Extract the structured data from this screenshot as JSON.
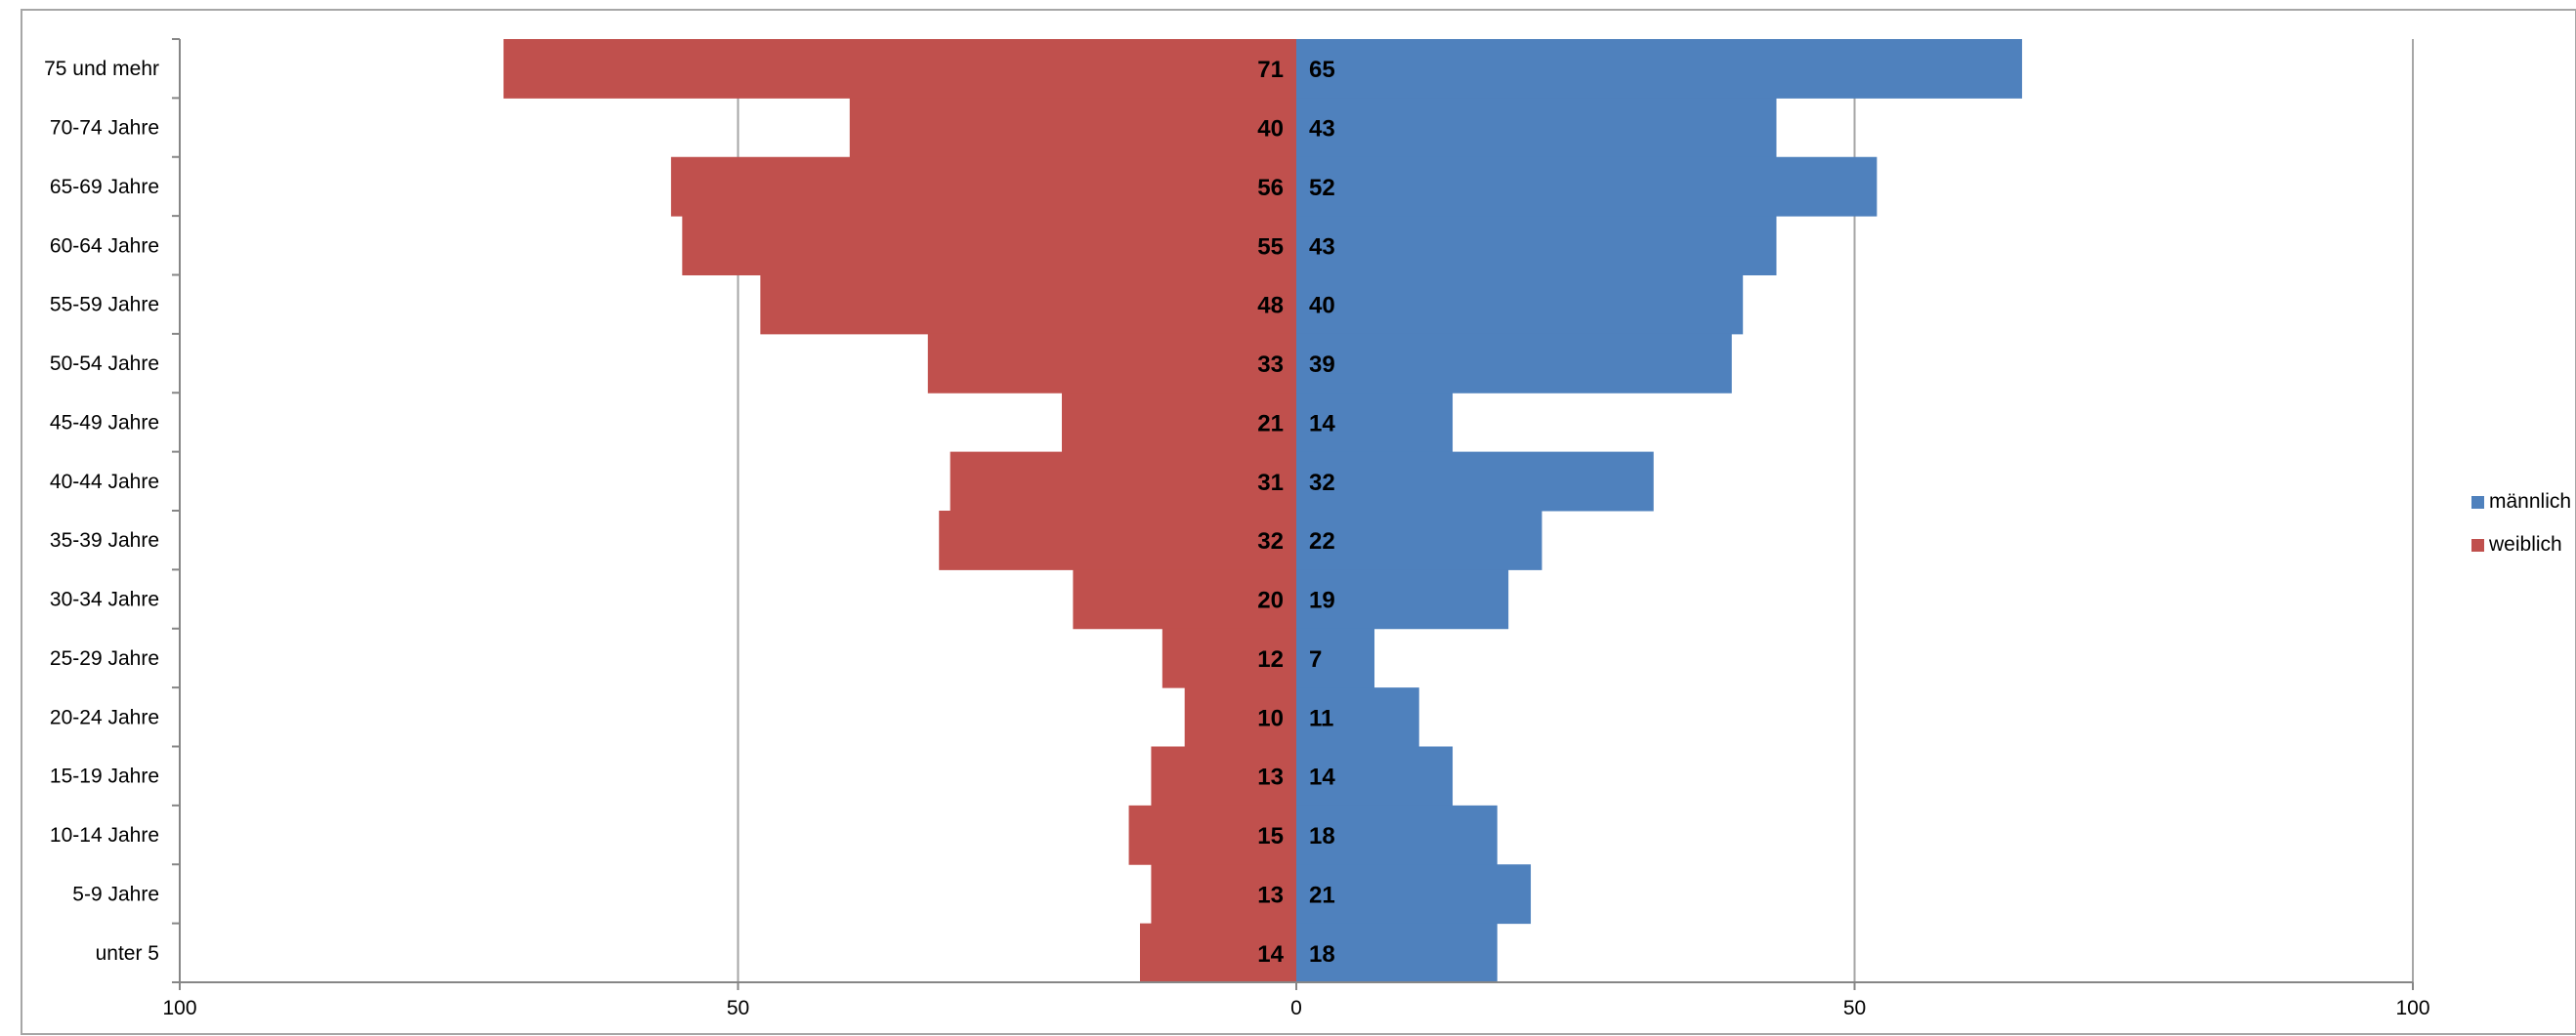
{
  "chart_data": {
    "type": "bar",
    "orientation": "horizontal-diverging",
    "title": "",
    "xlabel": "",
    "ylabel": "",
    "categories": [
      "75 und mehr",
      "70-74 Jahre",
      "65-69 Jahre",
      "60-64 Jahre",
      "55-59 Jahre",
      "50-54 Jahre",
      "45-49 Jahre",
      "40-44 Jahre",
      "35-39 Jahre",
      "30-34 Jahre",
      "25-29 Jahre",
      "20-24 Jahre",
      "15-19 Jahre",
      "10-14 Jahre",
      "5-9 Jahre",
      "unter 5"
    ],
    "series": [
      {
        "name": "männlich",
        "color": "#4F81BD",
        "side": "right",
        "values": [
          65,
          43,
          52,
          43,
          40,
          39,
          14,
          32,
          22,
          19,
          7,
          11,
          14,
          18,
          21,
          18
        ]
      },
      {
        "name": "weiblich",
        "color": "#C0504D",
        "side": "left",
        "values": [
          71,
          40,
          56,
          55,
          48,
          33,
          21,
          31,
          32,
          20,
          12,
          10,
          13,
          15,
          13,
          14
        ]
      }
    ],
    "xlim": [
      -100,
      100
    ],
    "x_ticks": [
      -100,
      -50,
      0,
      50,
      100
    ],
    "x_tick_labels": [
      "100",
      "50",
      "0",
      "50",
      "100"
    ],
    "grid": "vertical",
    "legend": "right"
  }
}
